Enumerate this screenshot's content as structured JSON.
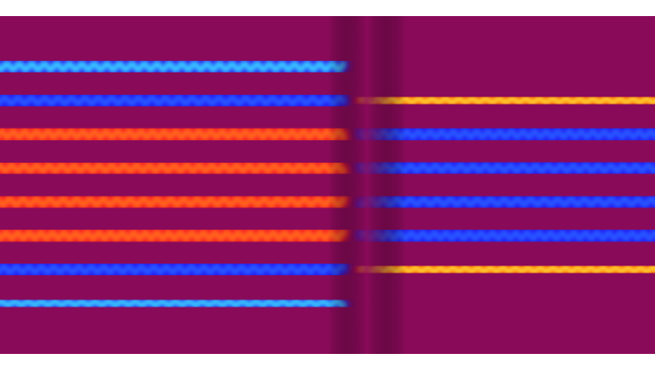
{
  "image": {
    "description_free": true,
    "background_color": "#ffffff",
    "field_color": "#8a0a5a",
    "colormap": {
      "positive_high": "#ffff20",
      "positive_mid": "#ff8a00",
      "positive_low": "#ff1a1a",
      "neutral": "#8a0a5a",
      "negative_low": "#1a1aff",
      "negative_mid": "#2a6dff",
      "negative_high": "#22e6ff"
    },
    "stripes": [
      {
        "left": "pos_strong",
        "right": "neg_strong",
        "left_ripple": 0.0,
        "right_ripple": 0.0
      },
      {
        "left": "neg_mid",
        "right": "pos_strong",
        "left_ripple": 1.0,
        "right_ripple": 0.0
      },
      {
        "left": "neg_low",
        "right": "pos_mid",
        "left_ripple": 1.0,
        "right_ripple": 0.6
      },
      {
        "left": "pos_low",
        "right": "neg_low",
        "left_ripple": 1.0,
        "right_ripple": 1.0
      },
      {
        "left": "pos_low",
        "right": "neg_low",
        "left_ripple": 1.0,
        "right_ripple": 1.0
      },
      {
        "left": "pos_low",
        "right": "neg_low",
        "left_ripple": 1.0,
        "right_ripple": 1.0
      },
      {
        "left": "pos_low",
        "right": "neg_low",
        "left_ripple": 1.0,
        "right_ripple": 1.0
      },
      {
        "left": "neg_low",
        "right": "pos_mid",
        "left_ripple": 1.0,
        "right_ripple": 0.6
      },
      {
        "left": "neg_mid",
        "right": "pos_strong",
        "left_ripple": 0.6,
        "right_ripple": 0.0
      },
      {
        "left": "pos_strong",
        "right": "neg_strong",
        "left_ripple": 0.0,
        "right_ripple": 0.0
      }
    ]
  }
}
